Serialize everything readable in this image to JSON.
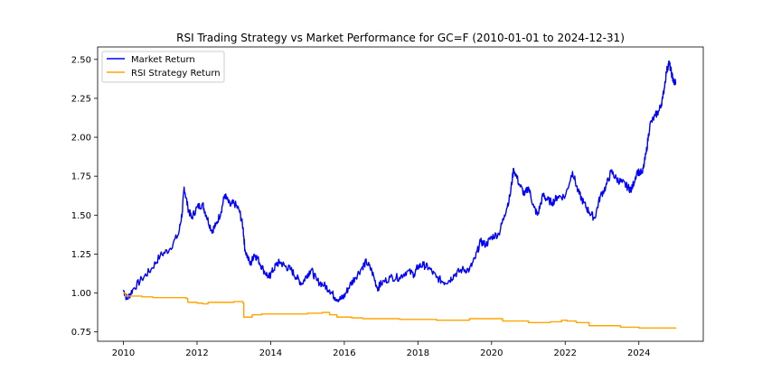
{
  "chart_data": {
    "type": "line",
    "title": "RSI Trading Strategy vs Market Performance for GC=F (2010-01-01 to 2024-12-31)",
    "xlabel": "",
    "ylabel": "",
    "xlim": [
      2009.3,
      2025.75
    ],
    "ylim": [
      0.69,
      2.58
    ],
    "x_ticks": [
      2010,
      2012,
      2014,
      2016,
      2018,
      2020,
      2022,
      2024
    ],
    "y_ticks": [
      0.75,
      1.0,
      1.25,
      1.5,
      1.75,
      2.0,
      2.25,
      2.5
    ],
    "y_tick_labels": [
      "0.75",
      "1.00",
      "1.25",
      "1.50",
      "1.75",
      "2.00",
      "2.25",
      "2.50"
    ],
    "grid": false,
    "legend_position": "top-left",
    "series": [
      {
        "name": "Market Return",
        "color": "#0000ff",
        "points": [
          [
            2010.0,
            1.02
          ],
          [
            2010.1,
            0.96
          ],
          [
            2010.25,
            1.02
          ],
          [
            2010.5,
            1.09
          ],
          [
            2010.75,
            1.15
          ],
          [
            2011.0,
            1.24
          ],
          [
            2011.25,
            1.28
          ],
          [
            2011.5,
            1.38
          ],
          [
            2011.6,
            1.52
          ],
          [
            2011.65,
            1.68
          ],
          [
            2011.75,
            1.55
          ],
          [
            2011.85,
            1.48
          ],
          [
            2012.0,
            1.55
          ],
          [
            2012.15,
            1.57
          ],
          [
            2012.25,
            1.5
          ],
          [
            2012.4,
            1.4
          ],
          [
            2012.5,
            1.43
          ],
          [
            2012.65,
            1.52
          ],
          [
            2012.75,
            1.63
          ],
          [
            2012.9,
            1.56
          ],
          [
            2013.0,
            1.58
          ],
          [
            2013.15,
            1.53
          ],
          [
            2013.25,
            1.42
          ],
          [
            2013.3,
            1.28
          ],
          [
            2013.45,
            1.18
          ],
          [
            2013.55,
            1.25
          ],
          [
            2013.65,
            1.22
          ],
          [
            2013.8,
            1.15
          ],
          [
            2013.95,
            1.1
          ],
          [
            2014.0,
            1.12
          ],
          [
            2014.15,
            1.18
          ],
          [
            2014.25,
            1.2
          ],
          [
            2014.4,
            1.17
          ],
          [
            2014.55,
            1.15
          ],
          [
            2014.7,
            1.1
          ],
          [
            2014.85,
            1.06
          ],
          [
            2015.0,
            1.12
          ],
          [
            2015.1,
            1.15
          ],
          [
            2015.25,
            1.08
          ],
          [
            2015.45,
            1.05
          ],
          [
            2015.6,
            1.02
          ],
          [
            2015.75,
            0.97
          ],
          [
            2015.9,
            0.96
          ],
          [
            2016.0,
            0.98
          ],
          [
            2016.15,
            1.05
          ],
          [
            2016.3,
            1.1
          ],
          [
            2016.5,
            1.17
          ],
          [
            2016.6,
            1.2
          ],
          [
            2016.75,
            1.14
          ],
          [
            2016.9,
            1.03
          ],
          [
            2017.0,
            1.06
          ],
          [
            2017.25,
            1.1
          ],
          [
            2017.5,
            1.1
          ],
          [
            2017.7,
            1.14
          ],
          [
            2017.9,
            1.12
          ],
          [
            2018.0,
            1.17
          ],
          [
            2018.15,
            1.18
          ],
          [
            2018.3,
            1.16
          ],
          [
            2018.5,
            1.1
          ],
          [
            2018.7,
            1.07
          ],
          [
            2018.85,
            1.08
          ],
          [
            2019.0,
            1.12
          ],
          [
            2019.2,
            1.15
          ],
          [
            2019.4,
            1.15
          ],
          [
            2019.55,
            1.22
          ],
          [
            2019.7,
            1.33
          ],
          [
            2019.85,
            1.31
          ],
          [
            2020.0,
            1.36
          ],
          [
            2020.2,
            1.38
          ],
          [
            2020.35,
            1.5
          ],
          [
            2020.5,
            1.62
          ],
          [
            2020.6,
            1.8
          ],
          [
            2020.75,
            1.7
          ],
          [
            2020.9,
            1.63
          ],
          [
            2021.0,
            1.68
          ],
          [
            2021.15,
            1.55
          ],
          [
            2021.25,
            1.5
          ],
          [
            2021.4,
            1.63
          ],
          [
            2021.5,
            1.6
          ],
          [
            2021.65,
            1.58
          ],
          [
            2021.8,
            1.62
          ],
          [
            2022.0,
            1.62
          ],
          [
            2022.2,
            1.78
          ],
          [
            2022.35,
            1.65
          ],
          [
            2022.5,
            1.58
          ],
          [
            2022.65,
            1.52
          ],
          [
            2022.8,
            1.48
          ],
          [
            2022.95,
            1.62
          ],
          [
            2023.1,
            1.68
          ],
          [
            2023.25,
            1.78
          ],
          [
            2023.4,
            1.73
          ],
          [
            2023.55,
            1.71
          ],
          [
            2023.7,
            1.68
          ],
          [
            2023.8,
            1.66
          ],
          [
            2023.95,
            1.78
          ],
          [
            2024.1,
            1.77
          ],
          [
            2024.2,
            1.9
          ],
          [
            2024.3,
            2.08
          ],
          [
            2024.45,
            2.14
          ],
          [
            2024.55,
            2.17
          ],
          [
            2024.65,
            2.25
          ],
          [
            2024.75,
            2.42
          ],
          [
            2024.82,
            2.48
          ],
          [
            2024.9,
            2.4
          ],
          [
            2024.95,
            2.35
          ],
          [
            2025.0,
            2.36
          ]
        ]
      },
      {
        "name": "RSI Strategy Return",
        "color": "#ffa500",
        "points": [
          [
            2010.0,
            1.0
          ],
          [
            2010.05,
            0.98
          ],
          [
            2010.3,
            0.98
          ],
          [
            2010.5,
            0.975
          ],
          [
            2010.8,
            0.97
          ],
          [
            2011.2,
            0.97
          ],
          [
            2011.7,
            0.965
          ],
          [
            2011.75,
            0.94
          ],
          [
            2012.0,
            0.935
          ],
          [
            2012.15,
            0.93
          ],
          [
            2012.3,
            0.94
          ],
          [
            2012.7,
            0.94
          ],
          [
            2013.0,
            0.945
          ],
          [
            2013.25,
            0.935
          ],
          [
            2013.27,
            0.845
          ],
          [
            2013.5,
            0.86
          ],
          [
            2013.75,
            0.865
          ],
          [
            2014.25,
            0.865
          ],
          [
            2014.6,
            0.865
          ],
          [
            2015.0,
            0.87
          ],
          [
            2015.4,
            0.875
          ],
          [
            2015.6,
            0.86
          ],
          [
            2015.8,
            0.845
          ],
          [
            2016.2,
            0.84
          ],
          [
            2016.5,
            0.835
          ],
          [
            2017.0,
            0.835
          ],
          [
            2017.5,
            0.83
          ],
          [
            2018.0,
            0.83
          ],
          [
            2018.5,
            0.825
          ],
          [
            2019.0,
            0.825
          ],
          [
            2019.4,
            0.835
          ],
          [
            2020.0,
            0.835
          ],
          [
            2020.25,
            0.835
          ],
          [
            2020.3,
            0.82
          ],
          [
            2020.8,
            0.82
          ],
          [
            2021.0,
            0.81
          ],
          [
            2021.4,
            0.81
          ],
          [
            2021.6,
            0.815
          ],
          [
            2021.9,
            0.825
          ],
          [
            2022.05,
            0.82
          ],
          [
            2022.3,
            0.81
          ],
          [
            2022.6,
            0.81
          ],
          [
            2022.65,
            0.79
          ],
          [
            2023.2,
            0.79
          ],
          [
            2023.5,
            0.78
          ],
          [
            2023.8,
            0.78
          ],
          [
            2024.0,
            0.775
          ],
          [
            2024.5,
            0.775
          ],
          [
            2025.0,
            0.77
          ]
        ]
      }
    ]
  }
}
